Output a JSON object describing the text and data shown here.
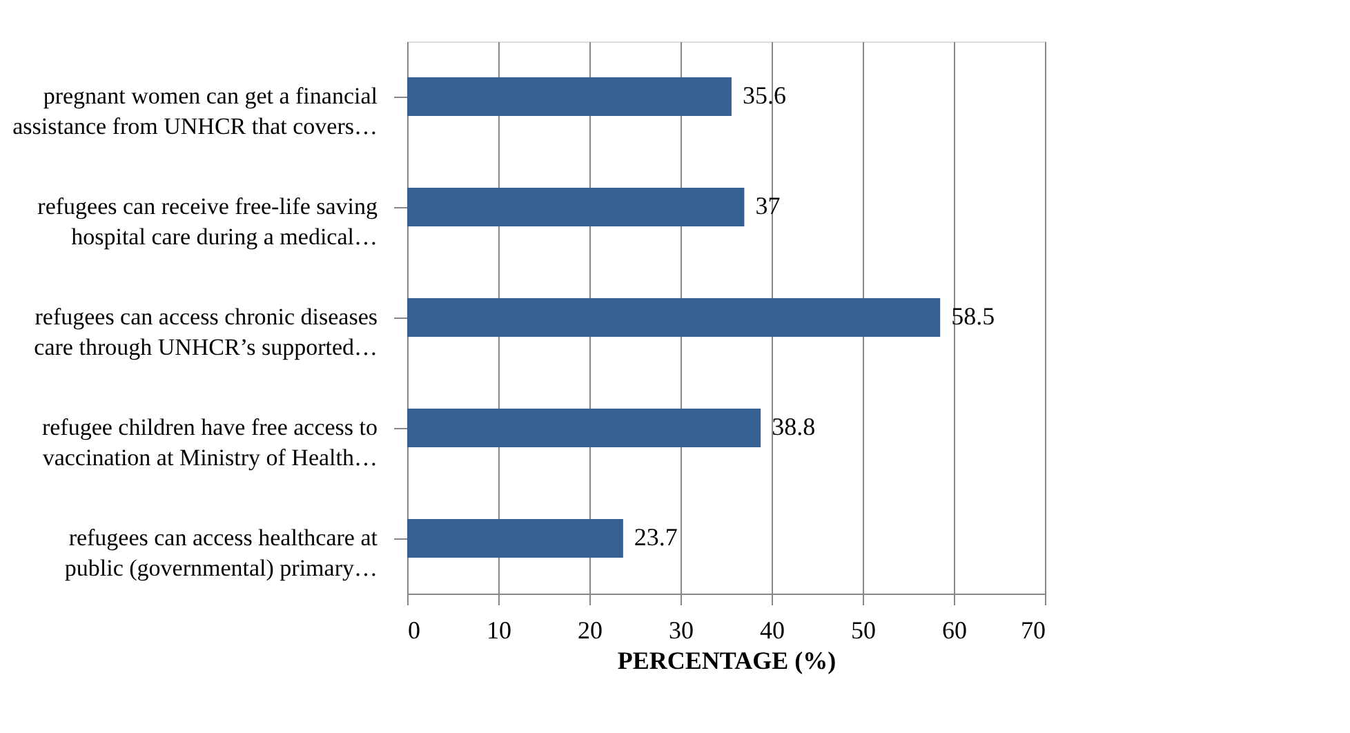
{
  "chart_data": {
    "type": "bar",
    "orientation": "horizontal",
    "xlabel": "PERCENTAGE (%)",
    "categories": [
      "pregnant women can get a financial\nassistance from UNHCR that covers…",
      "refugees can receive free-life saving\nhospital care during a medical…",
      "refugees can access chronic diseases\ncare through UNHCR’s supported…",
      "refugee children have free access to\nvaccination at Ministry of Health…",
      "refugees can access healthcare at\npublic (governmental) primary…"
    ],
    "values": [
      35.6,
      37,
      58.5,
      38.8,
      23.7
    ],
    "color": "#376092",
    "xlim": [
      0,
      70
    ],
    "xticks": [
      0,
      10,
      20,
      30,
      40,
      50,
      60,
      70
    ],
    "grid": "x",
    "data_labels": true
  }
}
